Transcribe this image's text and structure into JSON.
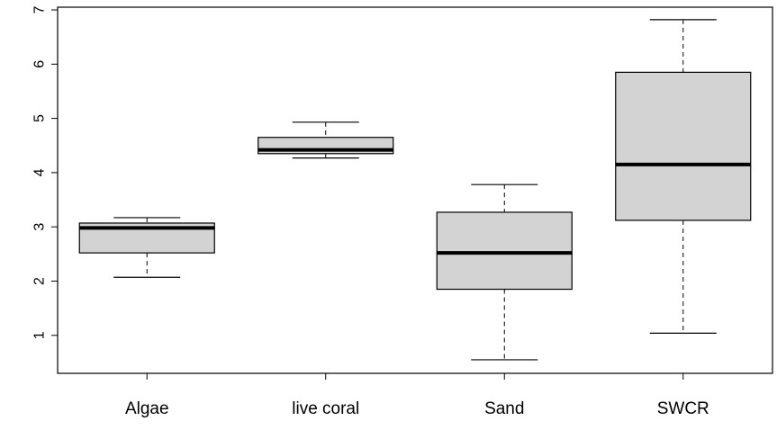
{
  "chart_data": {
    "type": "boxplot",
    "categories": [
      "Algae",
      "live coral",
      "Sand",
      "SWCR"
    ],
    "boxes": [
      {
        "category": "Algae",
        "min": 2.07,
        "q1": 2.52,
        "median": 2.98,
        "q3": 3.07,
        "max": 3.17
      },
      {
        "category": "live coral",
        "min": 4.27,
        "q1": 4.35,
        "median": 4.42,
        "q3": 4.65,
        "max": 4.93
      },
      {
        "category": "Sand",
        "min": 0.55,
        "q1": 1.85,
        "median": 2.52,
        "q3": 3.27,
        "max": 3.78
      },
      {
        "category": "SWCR",
        "min": 1.04,
        "q1": 3.12,
        "median": 4.15,
        "q3": 5.85,
        "max": 6.82
      }
    ],
    "y_ticks": [
      1,
      2,
      3,
      4,
      5,
      6,
      7
    ],
    "ylim": [
      0.3,
      7.05
    ],
    "box_fill": "#d3d3d3",
    "title": "",
    "xlabel": "",
    "ylabel": ""
  }
}
